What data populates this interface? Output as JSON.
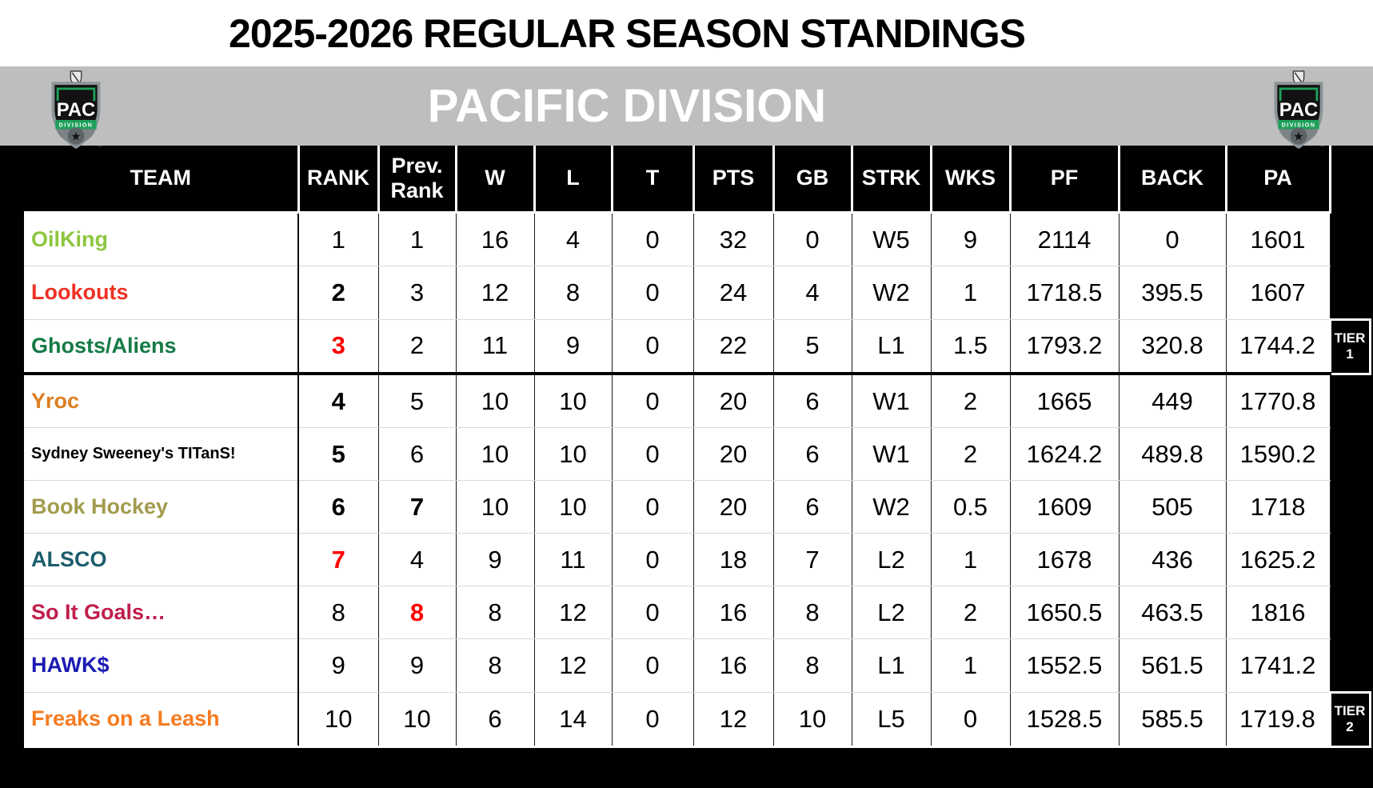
{
  "title": "2025-2026 REGULAR SEASON STANDINGS",
  "division": {
    "name": "PACIFIC DIVISION",
    "logo": {
      "abbr": "PAC",
      "sub": "DIVISION",
      "league": "NHL",
      "star": "★",
      "tm": "™"
    }
  },
  "colors": {
    "banner_bg": "#BEBEBE",
    "header_bg": "#000000",
    "accent_red": "#FF0000",
    "logo_green": "#1FA15B"
  },
  "table": {
    "headers": [
      "TEAM",
      "RANK",
      "Prev. Rank",
      "W",
      "L",
      "T",
      "PTS",
      "GB",
      "STRK",
      "WKS",
      "PF",
      "BACK",
      "PA"
    ],
    "rows": [
      {
        "team": "OilKing",
        "color": "#8DC63F",
        "small": false,
        "rank": "1",
        "rank_bold": false,
        "rank_red": false,
        "prev": "1",
        "prev_bold": false,
        "prev_red": false,
        "w": "16",
        "l": "4",
        "t": "0",
        "pts": "32",
        "gb": "0",
        "strk": "W5",
        "wks": "9",
        "pf": "2114",
        "back": "0",
        "pa": "1601",
        "tier": null,
        "tier_end": false
      },
      {
        "team": "Lookouts",
        "color": "#EE3124",
        "small": false,
        "rank": "2",
        "rank_bold": true,
        "rank_red": false,
        "prev": "3",
        "prev_bold": false,
        "prev_red": false,
        "w": "12",
        "l": "8",
        "t": "0",
        "pts": "24",
        "gb": "4",
        "strk": "W2",
        "wks": "1",
        "pf": "1718.5",
        "back": "395.5",
        "pa": "1607",
        "tier": null,
        "tier_end": false
      },
      {
        "team": "Ghosts/Aliens",
        "color": "#157A45",
        "small": false,
        "rank": "3",
        "rank_bold": true,
        "rank_red": true,
        "prev": "2",
        "prev_bold": false,
        "prev_red": false,
        "w": "11",
        "l": "9",
        "t": "0",
        "pts": "22",
        "gb": "5",
        "strk": "L1",
        "wks": "1.5",
        "pf": "1793.2",
        "back": "320.8",
        "pa": "1744.2",
        "tier": {
          "label": "TIER",
          "num": "1"
        },
        "tier_end": true
      },
      {
        "team": "Yroc",
        "color": "#DD7D20",
        "small": false,
        "rank": "4",
        "rank_bold": true,
        "rank_red": false,
        "prev": "5",
        "prev_bold": false,
        "prev_red": false,
        "w": "10",
        "l": "10",
        "t": "0",
        "pts": "20",
        "gb": "6",
        "strk": "W1",
        "wks": "2",
        "pf": "1665",
        "back": "449",
        "pa": "1770.8",
        "tier": null,
        "tier_end": false
      },
      {
        "team": "Sydney Sweeney's TITanS!",
        "color": "#000000",
        "small": true,
        "rank": "5",
        "rank_bold": true,
        "rank_red": false,
        "prev": "6",
        "prev_bold": false,
        "prev_red": false,
        "w": "10",
        "l": "10",
        "t": "0",
        "pts": "20",
        "gb": "6",
        "strk": "W1",
        "wks": "2",
        "pf": "1624.2",
        "back": "489.8",
        "pa": "1590.2",
        "tier": null,
        "tier_end": false
      },
      {
        "team": "Book Hockey",
        "color": "#A29B4D",
        "small": false,
        "rank": "6",
        "rank_bold": true,
        "rank_red": false,
        "prev": "7",
        "prev_bold": true,
        "prev_red": false,
        "w": "10",
        "l": "10",
        "t": "0",
        "pts": "20",
        "gb": "6",
        "strk": "W2",
        "wks": "0.5",
        "pf": "1609",
        "back": "505",
        "pa": "1718",
        "tier": null,
        "tier_end": false
      },
      {
        "team": "ALSCO",
        "color": "#1C5D6B",
        "small": false,
        "rank": "7",
        "rank_bold": true,
        "rank_red": true,
        "prev": "4",
        "prev_bold": false,
        "prev_red": false,
        "w": "9",
        "l": "11",
        "t": "0",
        "pts": "18",
        "gb": "7",
        "strk": "L2",
        "wks": "1",
        "pf": "1678",
        "back": "436",
        "pa": "1625.2",
        "tier": null,
        "tier_end": false
      },
      {
        "team": "So It Goals…",
        "color": "#C01E4B",
        "small": false,
        "rank": "8",
        "rank_bold": false,
        "rank_red": false,
        "prev": "8",
        "prev_bold": true,
        "prev_red": true,
        "w": "8",
        "l": "12",
        "t": "0",
        "pts": "16",
        "gb": "8",
        "strk": "L2",
        "wks": "2",
        "pf": "1650.5",
        "back": "463.5",
        "pa": "1816",
        "tier": null,
        "tier_end": false
      },
      {
        "team": "HAWK$",
        "color": "#1B1BB3",
        "small": false,
        "rank": "9",
        "rank_bold": false,
        "rank_red": false,
        "prev": "9",
        "prev_bold": false,
        "prev_red": false,
        "w": "8",
        "l": "12",
        "t": "0",
        "pts": "16",
        "gb": "8",
        "strk": "L1",
        "wks": "1",
        "pf": "1552.5",
        "back": "561.5",
        "pa": "1741.2",
        "tier": null,
        "tier_end": false
      },
      {
        "team": "Freaks on a Leash",
        "color": "#F67B20",
        "small": false,
        "rank": "10",
        "rank_bold": false,
        "rank_red": false,
        "prev": "10",
        "prev_bold": false,
        "prev_red": false,
        "w": "6",
        "l": "14",
        "t": "0",
        "pts": "12",
        "gb": "10",
        "strk": "L5",
        "wks": "0",
        "pf": "1528.5",
        "back": "585.5",
        "pa": "1719.8",
        "tier": {
          "label": "TIER",
          "num": "2"
        },
        "tier_end": false
      }
    ]
  }
}
